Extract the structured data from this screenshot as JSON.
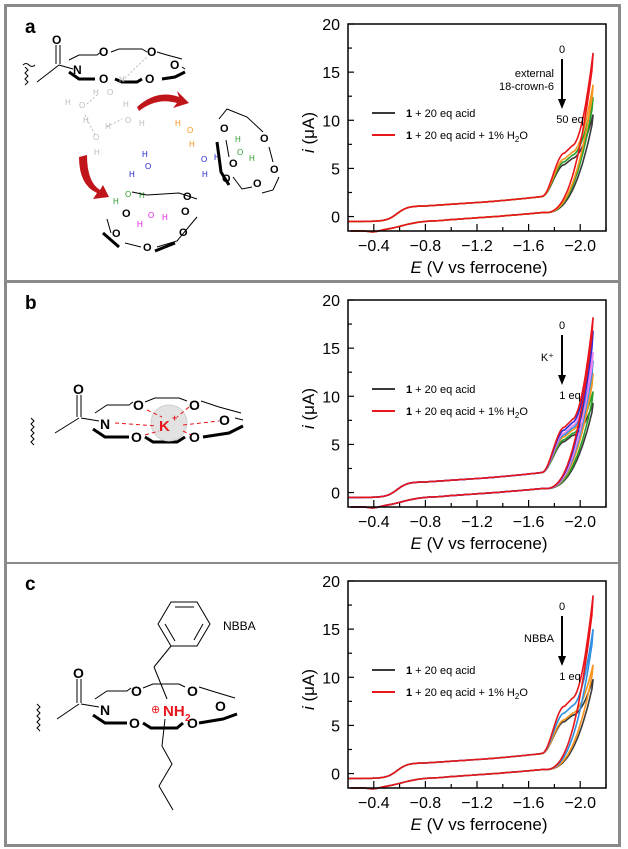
{
  "panels": [
    {
      "label": "a",
      "structure": {
        "atoms_O": "O",
        "atom_N": "N",
        "atom_H": "H",
        "description": "aza-18-crown-6 amide releasing hydrogen-bonded water network to external 18-crown-6"
      }
    },
    {
      "label": "b",
      "structure": {
        "atoms_O": "O",
        "atom_N": "N",
        "cation": "K",
        "cation_charge": "+"
      }
    },
    {
      "label": "c",
      "structure": {
        "atoms_O": "O",
        "atom_N": "N",
        "ammonium": "NH",
        "ammonium_sub": "2",
        "charge_symbol": "⊕",
        "guest_name": "NBBA"
      }
    }
  ],
  "chart_data": [
    {
      "type": "line",
      "panel": "a",
      "title": "",
      "xlabel_italic": "E",
      "xlabel": " (V vs ferrocene)",
      "ylabel_italic": "i",
      "ylabel": " (μA)",
      "xlim": [
        -0.2,
        -2.2
      ],
      "ylim": [
        -1.5,
        20
      ],
      "xticks": [
        -0.4,
        -0.8,
        -1.2,
        -1.6,
        -2.0
      ],
      "xtick_labels": [
        "−0.4",
        "−0.8",
        "−1.2",
        "−1.6",
        "−2.0"
      ],
      "yticks": [
        0,
        5,
        10,
        15,
        20
      ],
      "ytick_labels": [
        "0",
        "5",
        "10",
        "15",
        "20"
      ],
      "grid": false,
      "legend": {
        "position": "center-left",
        "entries": [
          {
            "bold": "1",
            "text": " + 20 eq acid",
            "color": "#3a3a3a"
          },
          {
            "bold": "1",
            "text": " + 20 eq acid + 1% H",
            "sub": "2",
            "tail": "O",
            "color": "#e8161b"
          }
        ]
      },
      "annotation": {
        "top": "0",
        "middle": [
          "external",
          "18-crown-6"
        ],
        "bottom": "50 eq"
      },
      "series": [
        {
          "name": "0 eq (1 + 20 eq acid + 1% H2O)",
          "color": "#e8161b",
          "end_value": 17.0,
          "shoulder": 6.6
        },
        {
          "name": "intermediate",
          "color": "#f7941d",
          "end_value": 13.7,
          "shoulder": 6.0
        },
        {
          "name": "intermediate",
          "color": "#2aa02a",
          "end_value": 12.4,
          "shoulder": 5.7
        },
        {
          "name": "50 eq",
          "color": "#3a3a3a",
          "end_value": 10.6,
          "shoulder": 5.4
        }
      ]
    },
    {
      "type": "line",
      "panel": "b",
      "title": "",
      "xlabel_italic": "E",
      "xlabel": " (V vs ferrocene)",
      "ylabel_italic": "i",
      "ylabel": " (μA)",
      "xlim": [
        -0.2,
        -2.2
      ],
      "ylim": [
        -1.5,
        20
      ],
      "xticks": [
        -0.4,
        -0.8,
        -1.2,
        -1.6,
        -2.0
      ],
      "xtick_labels": [
        "−0.4",
        "−0.8",
        "−1.2",
        "−1.6",
        "−2.0"
      ],
      "yticks": [
        0,
        5,
        10,
        15,
        20
      ],
      "ytick_labels": [
        "0",
        "5",
        "10",
        "15",
        "20"
      ],
      "grid": false,
      "legend": {
        "position": "center-left",
        "entries": [
          {
            "bold": "1",
            "text": " + 20 eq acid",
            "color": "#3a3a3a"
          },
          {
            "bold": "1",
            "text": " + 20 eq acid + 1% H",
            "sub": "2",
            "tail": "O",
            "color": "#e8161b"
          }
        ]
      },
      "annotation": {
        "top": "0",
        "middle": [
          "K⁺"
        ],
        "bottom": "1 eq"
      },
      "series": [
        {
          "name": "0 eq",
          "color": "#e8161b",
          "end_value": 18.2,
          "shoulder": 6.8
        },
        {
          "name": "intermediate",
          "color": "#2b2bd8",
          "end_value": 16.8,
          "shoulder": 6.5
        },
        {
          "name": "intermediate",
          "color": "#ee82ee",
          "end_value": 14.6,
          "shoulder": 6.2
        },
        {
          "name": "intermediate",
          "color": "#2f8fe0",
          "end_value": 13.7,
          "shoulder": 6.0
        },
        {
          "name": "intermediate",
          "color": "#f7941d",
          "end_value": 12.4,
          "shoulder": 5.8
        },
        {
          "name": "intermediate",
          "color": "#2aa02a",
          "end_value": 10.5,
          "shoulder": 5.5
        },
        {
          "name": "1 eq",
          "color": "#3a3a3a",
          "end_value": 9.3,
          "shoulder": 5.3
        }
      ]
    },
    {
      "type": "line",
      "panel": "c",
      "title": "",
      "xlabel_italic": "E",
      "xlabel": " (V vs ferrocene)",
      "ylabel_italic": "i",
      "ylabel": " (μA)",
      "xlim": [
        -0.2,
        -2.2
      ],
      "ylim": [
        -1.5,
        20
      ],
      "xticks": [
        -0.4,
        -0.8,
        -1.2,
        -1.6,
        -2.0
      ],
      "xtick_labels": [
        "−0.4",
        "−0.8",
        "−1.2",
        "−1.6",
        "−2.0"
      ],
      "yticks": [
        0,
        5,
        10,
        15,
        20
      ],
      "ytick_labels": [
        "0",
        "5",
        "10",
        "15",
        "20"
      ],
      "grid": false,
      "legend": {
        "position": "center-left",
        "entries": [
          {
            "bold": "1",
            "text": " + 20 eq acid",
            "color": "#3a3a3a"
          },
          {
            "bold": "1",
            "text": " + 20 eq acid + 1% H",
            "sub": "2",
            "tail": "O",
            "color": "#e8161b"
          }
        ]
      },
      "annotation": {
        "top": "0",
        "middle": [
          "NBBA"
        ],
        "bottom": "1 eq"
      },
      "series": [
        {
          "name": "0 eq",
          "color": "#e8161b",
          "end_value": 18.5,
          "shoulder": 7.0
        },
        {
          "name": "intermediate",
          "color": "#2f8fe0",
          "end_value": 15.0,
          "shoulder": 6.3
        },
        {
          "name": "intermediate",
          "color": "#f7941d",
          "end_value": 11.3,
          "shoulder": 5.6
        },
        {
          "name": "1 eq",
          "color": "#3a3a3a",
          "end_value": 9.8,
          "shoulder": 5.4
        }
      ]
    }
  ]
}
